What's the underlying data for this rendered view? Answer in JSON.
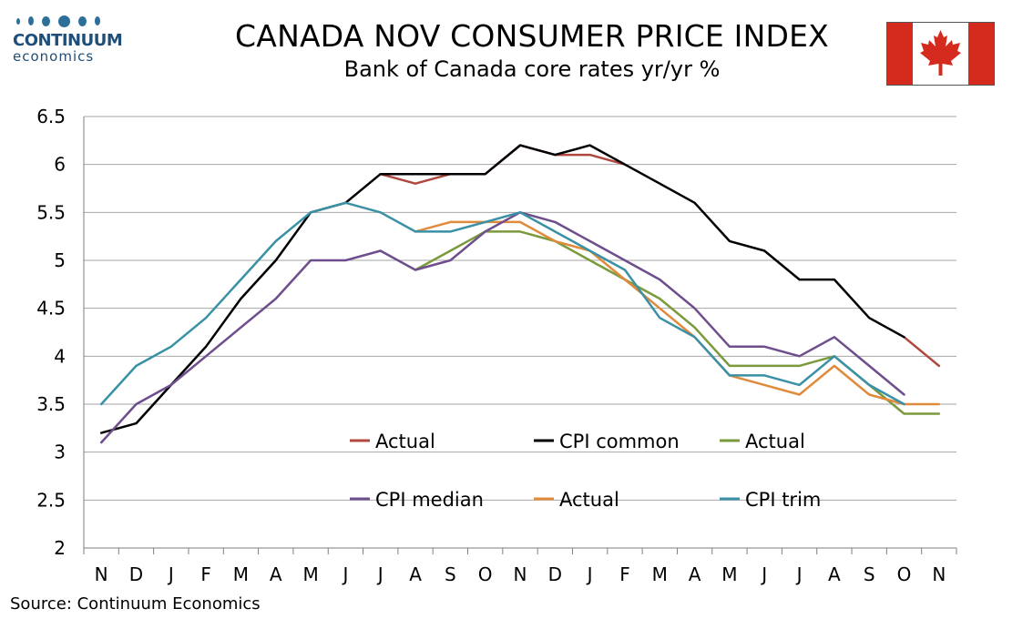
{
  "header": {
    "title": "CANADA NOV CONSUMER PRICE INDEX",
    "subtitle": "Bank of Canada core rates yr/yr %"
  },
  "logo": {
    "word": "CONTINUUM",
    "sub": "economics"
  },
  "footer": {
    "source": "Source: Continuum Economics"
  },
  "colors": {
    "common_actual": "#b0483f",
    "common": "#000000",
    "median_actual": "#7a9a3c",
    "median": "#6e4e8c",
    "trim_actual": "#e08a3c",
    "trim": "#3a91a6",
    "grid": "#a6a6a6",
    "flag_red": "#d52b1e"
  },
  "chart_data": {
    "type": "line",
    "categories": [
      "N",
      "D",
      "J",
      "F",
      "M",
      "A",
      "M",
      "J",
      "J",
      "A",
      "S",
      "O",
      "N",
      "D",
      "J",
      "F",
      "M",
      "A",
      "M",
      "J",
      "J",
      "A",
      "S",
      "O",
      "N"
    ],
    "ylim": [
      2,
      6.5
    ],
    "yticks": [
      "2",
      "2.5",
      "3",
      "3.5",
      "4",
      "4.5",
      "5",
      "5.5",
      "6",
      "6.5"
    ],
    "grid": true,
    "legend_position": "inside-lower",
    "series": [
      {
        "name": "Actual",
        "color_key": "common_actual",
        "values": [
          null,
          null,
          null,
          null,
          null,
          null,
          null,
          null,
          5.9,
          5.8,
          5.9,
          5.9,
          6.2,
          6.1,
          6.1,
          6.0,
          null,
          null,
          null,
          null,
          null,
          null,
          null,
          4.2,
          3.9
        ]
      },
      {
        "name": "CPI common",
        "color_key": "common",
        "values": [
          3.2,
          3.3,
          3.7,
          4.1,
          4.6,
          5.0,
          5.5,
          5.6,
          5.9,
          5.9,
          5.9,
          5.9,
          6.2,
          6.1,
          6.2,
          6.0,
          5.8,
          5.6,
          5.2,
          5.1,
          4.8,
          4.8,
          4.4,
          4.2,
          null
        ]
      },
      {
        "name": "Actual",
        "color_key": "median_actual",
        "values": [
          null,
          null,
          null,
          null,
          null,
          null,
          null,
          null,
          null,
          4.9,
          5.1,
          5.3,
          5.3,
          5.2,
          5.0,
          4.8,
          4.6,
          4.3,
          3.9,
          3.9,
          3.9,
          4.0,
          3.7,
          3.4,
          3.4
        ]
      },
      {
        "name": "CPI median",
        "color_key": "median",
        "values": [
          3.1,
          3.5,
          3.7,
          4.0,
          4.3,
          4.6,
          5.0,
          5.0,
          5.1,
          4.9,
          5.0,
          5.3,
          5.5,
          5.4,
          5.2,
          5.0,
          4.8,
          4.5,
          4.1,
          4.1,
          4.0,
          4.2,
          3.9,
          3.6,
          null
        ]
      },
      {
        "name": "Actual",
        "color_key": "trim_actual",
        "values": [
          null,
          null,
          null,
          null,
          null,
          null,
          null,
          null,
          null,
          5.3,
          5.4,
          5.4,
          5.4,
          5.2,
          5.1,
          4.8,
          4.5,
          4.2,
          3.8,
          3.7,
          3.6,
          3.9,
          3.6,
          3.5,
          3.5
        ]
      },
      {
        "name": "CPI trim",
        "color_key": "trim",
        "values": [
          3.5,
          3.9,
          4.1,
          4.4,
          4.8,
          5.2,
          5.5,
          5.6,
          5.5,
          5.3,
          5.3,
          5.4,
          5.5,
          5.3,
          5.1,
          4.9,
          4.4,
          4.2,
          3.8,
          3.8,
          3.7,
          4.0,
          3.7,
          3.5,
          null
        ]
      }
    ]
  }
}
